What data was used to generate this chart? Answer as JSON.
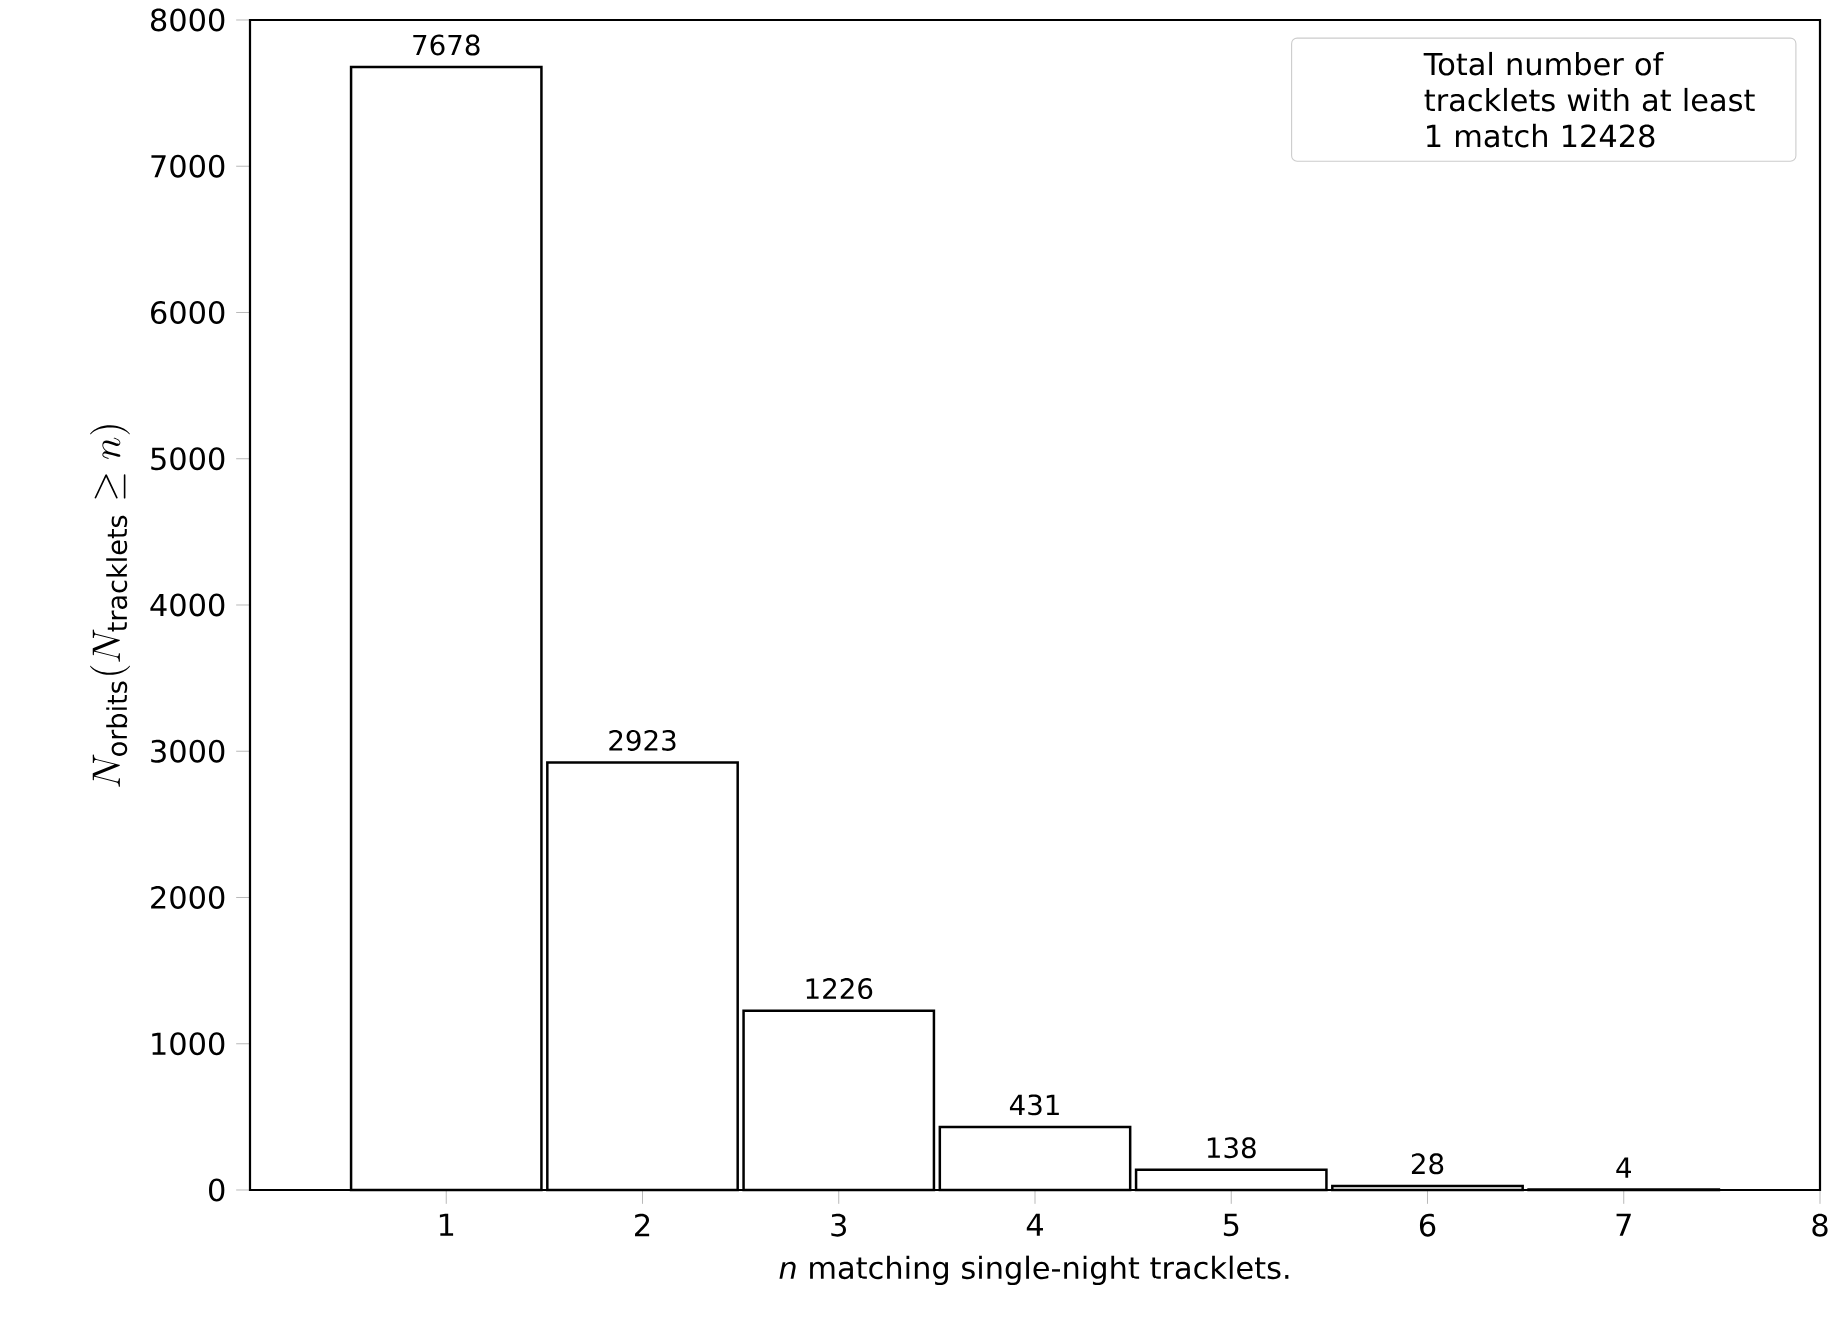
{
  "chart_data": {
    "type": "bar",
    "xlabel": "*n* matching single-night tracklets.",
    "ylabel": "N_{\\mathrm{orbits}}(N_{\\mathrm{tracklets}} \\geq n)",
    "x": [
      1,
      2,
      3,
      4,
      5,
      6,
      7
    ],
    "values": [
      7678,
      2923,
      1226,
      431,
      138,
      28,
      4
    ],
    "data_labels": true,
    "color": "#ffffff",
    "xlim": [
      0,
      8
    ],
    "xticks": [
      1,
      2,
      3,
      4,
      5,
      6,
      7,
      8
    ],
    "ylim": [
      0,
      8000
    ],
    "yticks": [
      0,
      1000,
      2000,
      3000,
      4000,
      5000,
      6000,
      7000,
      8000
    ],
    "annotations": [
      "Total number of tracklets with at least 1 match 12428"
    ]
  }
}
